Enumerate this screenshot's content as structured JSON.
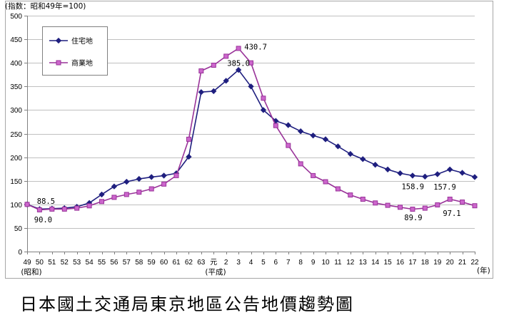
{
  "chart_data": {
    "type": "line",
    "ylabel": "(指数：昭和49年=100)",
    "xlabel": "(年)",
    "era_labels": {
      "showa": "(昭和)",
      "heisei": "(平成)"
    },
    "categories": [
      "49",
      "50",
      "51",
      "52",
      "53",
      "54",
      "55",
      "56",
      "57",
      "58",
      "59",
      "60",
      "61",
      "62",
      "63",
      "元",
      "2",
      "3",
      "4",
      "5",
      "6",
      "7",
      "8",
      "9",
      "10",
      "11",
      "12",
      "13",
      "14",
      "15",
      "16",
      "17",
      "18",
      "19",
      "20",
      "21",
      "22"
    ],
    "ylim": [
      0,
      500
    ],
    "yticks": [
      0,
      50,
      100,
      150,
      200,
      250,
      300,
      350,
      400,
      450,
      500
    ],
    "grid": true,
    "legend_position": "top-left",
    "series": [
      {
        "name": "住宅地",
        "marker": "diamond",
        "color": "#1f1f7f",
        "marker_fill": "#1f1f7f",
        "values": [
          100,
          90.0,
          91,
          92,
          95,
          103,
          121,
          138,
          148,
          154,
          158,
          161,
          166,
          201,
          338,
          340,
          362,
          385.0,
          350,
          300,
          277,
          268,
          255,
          246,
          238,
          223,
          207,
          196,
          184,
          174,
          166,
          161,
          158.9,
          164,
          174,
          167,
          157.9
        ],
        "data_labels": [
          null,
          "90.0",
          null,
          null,
          null,
          null,
          null,
          null,
          null,
          null,
          null,
          null,
          null,
          null,
          null,
          null,
          null,
          "385.0",
          null,
          null,
          null,
          null,
          null,
          null,
          null,
          null,
          null,
          null,
          null,
          null,
          null,
          null,
          "158.9",
          null,
          null,
          null,
          "157.9"
        ]
      },
      {
        "name": "商業地",
        "marker": "square",
        "color": "#993399",
        "marker_fill": "#cc66cc",
        "values": [
          100,
          88.5,
          90,
          90,
          92,
          97,
          106,
          115,
          121,
          126,
          133,
          143,
          161,
          238,
          383,
          395,
          414,
          430.7,
          400,
          325,
          267,
          225,
          186,
          161,
          148,
          133,
          120,
          111,
          103,
          98,
          94,
          89.9,
          92,
          99,
          111,
          105,
          97.1
        ],
        "data_labels": [
          null,
          "88.5",
          null,
          null,
          null,
          null,
          null,
          null,
          null,
          null,
          null,
          null,
          null,
          null,
          null,
          null,
          null,
          "430.7",
          null,
          null,
          null,
          null,
          null,
          null,
          null,
          null,
          null,
          null,
          null,
          null,
          null,
          "89.9",
          null,
          null,
          null,
          null,
          "97.1"
        ]
      }
    ]
  },
  "caption": "日本國土交通局東京地區公告地價趨勢圖"
}
